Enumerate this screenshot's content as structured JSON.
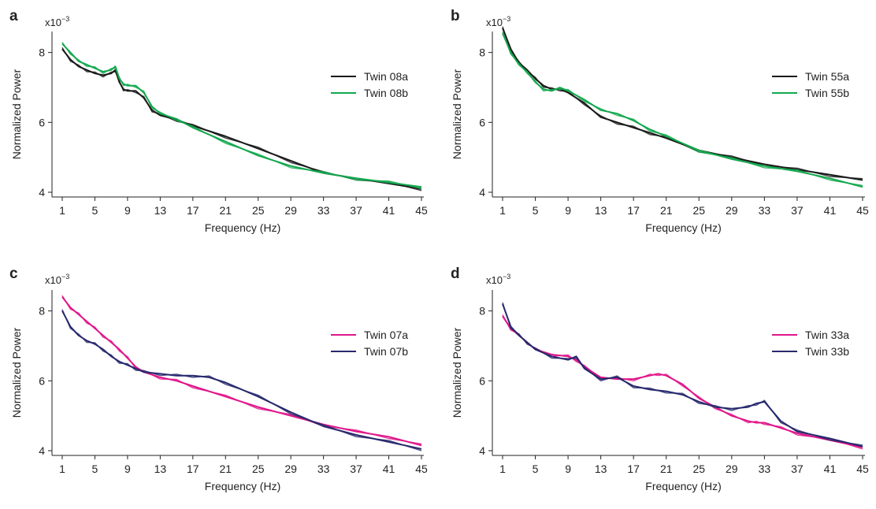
{
  "colors": {
    "black": "#1a1a1a",
    "green": "#12a84e",
    "magenta": "#e0158a",
    "navy": "#27296d"
  },
  "chart_data": [
    {
      "type": "line",
      "panel": "a",
      "xlabel": "Frequency (Hz)",
      "ylabel": "Normalized Power",
      "yexp": "x10",
      "yexp_sup": "−3",
      "xlim": [
        1,
        45
      ],
      "ylim": [
        4,
        8.6
      ],
      "xticks": [
        "1",
        "5",
        "9",
        "13",
        "17",
        "21",
        "25",
        "29",
        "33",
        "37",
        "41",
        "45"
      ],
      "yticks": [
        "4",
        "6",
        "8"
      ],
      "legend_position": "right",
      "series": [
        {
          "name": "Twin 08a",
          "color": "#1a1a1a",
          "x": [
            1,
            2,
            3,
            4,
            5,
            6,
            7,
            7.5,
            8,
            8.5,
            9,
            10,
            11,
            12,
            13,
            15,
            17,
            21,
            25,
            29,
            33,
            37,
            41,
            45
          ],
          "y": [
            8.1,
            7.8,
            7.6,
            7.5,
            7.4,
            7.35,
            7.4,
            7.5,
            7.15,
            6.95,
            6.9,
            6.9,
            6.7,
            6.35,
            6.2,
            6.08,
            5.9,
            5.6,
            5.25,
            4.9,
            4.55,
            4.4,
            4.25,
            4.1
          ]
        },
        {
          "name": "Twin 08b",
          "color": "#12a84e",
          "x": [
            1,
            2,
            3,
            4,
            5,
            6,
            7,
            7.5,
            8,
            8.5,
            9,
            10,
            11,
            12,
            13,
            15,
            17,
            21,
            25,
            29,
            33,
            37,
            41,
            45
          ],
          "y": [
            8.25,
            8.0,
            7.75,
            7.65,
            7.55,
            7.45,
            7.5,
            7.6,
            7.25,
            7.1,
            7.05,
            7.05,
            6.85,
            6.45,
            6.25,
            6.1,
            5.85,
            5.45,
            5.05,
            4.75,
            4.55,
            4.4,
            4.28,
            4.15
          ]
        }
      ]
    },
    {
      "type": "line",
      "panel": "b",
      "xlabel": "Frequency (Hz)",
      "ylabel": "Normalized Power",
      "yexp": "x10",
      "yexp_sup": "−3",
      "xlim": [
        1,
        45
      ],
      "ylim": [
        4,
        8.6
      ],
      "xticks": [
        "1",
        "5",
        "9",
        "13",
        "17",
        "21",
        "25",
        "29",
        "33",
        "37",
        "41",
        "45"
      ],
      "yticks": [
        "4",
        "6",
        "8"
      ],
      "legend_position": "right",
      "series": [
        {
          "name": "Twin 55a",
          "color": "#1a1a1a",
          "x": [
            1,
            2,
            3,
            4,
            5,
            6,
            7,
            8,
            9,
            11,
            13,
            15,
            17,
            19,
            21,
            25,
            29,
            33,
            37,
            41,
            45
          ],
          "y": [
            8.7,
            8.1,
            7.7,
            7.5,
            7.25,
            7.05,
            6.95,
            6.95,
            6.85,
            6.55,
            6.15,
            6.0,
            5.85,
            5.7,
            5.55,
            5.2,
            5.0,
            4.8,
            4.65,
            4.5,
            4.35
          ]
        },
        {
          "name": "Twin 55b",
          "color": "#12a84e",
          "x": [
            1,
            2,
            3,
            4,
            5,
            6,
            7,
            8,
            9,
            11,
            13,
            15,
            17,
            19,
            21,
            25,
            29,
            33,
            37,
            41,
            45
          ],
          "y": [
            8.55,
            8.0,
            7.65,
            7.45,
            7.15,
            6.95,
            6.9,
            7.0,
            6.9,
            6.65,
            6.35,
            6.25,
            6.05,
            5.8,
            5.6,
            5.2,
            4.95,
            4.75,
            4.6,
            4.4,
            4.15
          ]
        }
      ]
    },
    {
      "type": "line",
      "panel": "c",
      "xlabel": "Frequency (Hz)",
      "ylabel": "Normalized Power",
      "yexp": "x10",
      "yexp_sup": "−3",
      "xlim": [
        1,
        45
      ],
      "ylim": [
        4,
        8.6
      ],
      "xticks": [
        "1",
        "5",
        "9",
        "13",
        "17",
        "21",
        "25",
        "29",
        "33",
        "37",
        "41",
        "45"
      ],
      "yticks": [
        "4",
        "6",
        "8"
      ],
      "legend_position": "right",
      "series": [
        {
          "name": "Twin 07a",
          "color": "#e0158a",
          "x": [
            1,
            2,
            3,
            4,
            5,
            6,
            7,
            8,
            9,
            10,
            11,
            13,
            15,
            17,
            21,
            25,
            29,
            33,
            37,
            41,
            45
          ],
          "y": [
            8.4,
            8.1,
            7.9,
            7.7,
            7.5,
            7.3,
            7.1,
            6.9,
            6.65,
            6.4,
            6.25,
            6.1,
            6.0,
            5.85,
            5.55,
            5.25,
            5.0,
            4.75,
            4.55,
            4.4,
            4.15
          ]
        },
        {
          "name": "Twin 07b",
          "color": "#27296d",
          "x": [
            1,
            2,
            3,
            4,
            5,
            6,
            7,
            8,
            9,
            10,
            11,
            13,
            15,
            17,
            19,
            21,
            25,
            29,
            33,
            37,
            41,
            45
          ],
          "y": [
            8.0,
            7.55,
            7.3,
            7.15,
            7.05,
            6.9,
            6.7,
            6.55,
            6.45,
            6.35,
            6.25,
            6.2,
            6.15,
            6.15,
            6.1,
            5.95,
            5.55,
            5.1,
            4.7,
            4.45,
            4.25,
            4.05
          ]
        }
      ]
    },
    {
      "type": "line",
      "panel": "d",
      "xlabel": "Frequency (Hz)",
      "ylabel": "Normalized Power",
      "yexp": "x10",
      "yexp_sup": "−3",
      "xlim": [
        1,
        45
      ],
      "ylim": [
        4,
        8.6
      ],
      "xticks": [
        "1",
        "5",
        "9",
        "13",
        "17",
        "21",
        "25",
        "29",
        "33",
        "37",
        "41",
        "45"
      ],
      "yticks": [
        "4",
        "6",
        "8"
      ],
      "legend_position": "right",
      "series": [
        {
          "name": "Twin 33a",
          "color": "#e0158a",
          "x": [
            1,
            2,
            3,
            4,
            5,
            7,
            9,
            10,
            11,
            13,
            15,
            17,
            19,
            20,
            21,
            23,
            25,
            27,
            29,
            31,
            32,
            33,
            35,
            37,
            41,
            45
          ],
          "y": [
            7.85,
            7.5,
            7.3,
            7.1,
            6.9,
            6.75,
            6.7,
            6.6,
            6.4,
            6.1,
            6.05,
            6.05,
            6.15,
            6.2,
            6.15,
            5.9,
            5.5,
            5.25,
            5.0,
            4.85,
            4.8,
            4.8,
            4.65,
            4.5,
            4.3,
            4.1
          ]
        },
        {
          "name": "Twin 33b",
          "color": "#27296d",
          "x": [
            1,
            2,
            3,
            4,
            5,
            7,
            9,
            10,
            11,
            13,
            15,
            17,
            19,
            21,
            23,
            25,
            27,
            29,
            31,
            32,
            33,
            35,
            37,
            41,
            45
          ],
          "y": [
            8.2,
            7.55,
            7.3,
            7.1,
            6.9,
            6.7,
            6.6,
            6.7,
            6.35,
            6.05,
            6.1,
            5.85,
            5.75,
            5.7,
            5.6,
            5.4,
            5.25,
            5.2,
            5.25,
            5.35,
            5.4,
            4.85,
            4.55,
            4.35,
            4.12
          ]
        }
      ]
    }
  ]
}
